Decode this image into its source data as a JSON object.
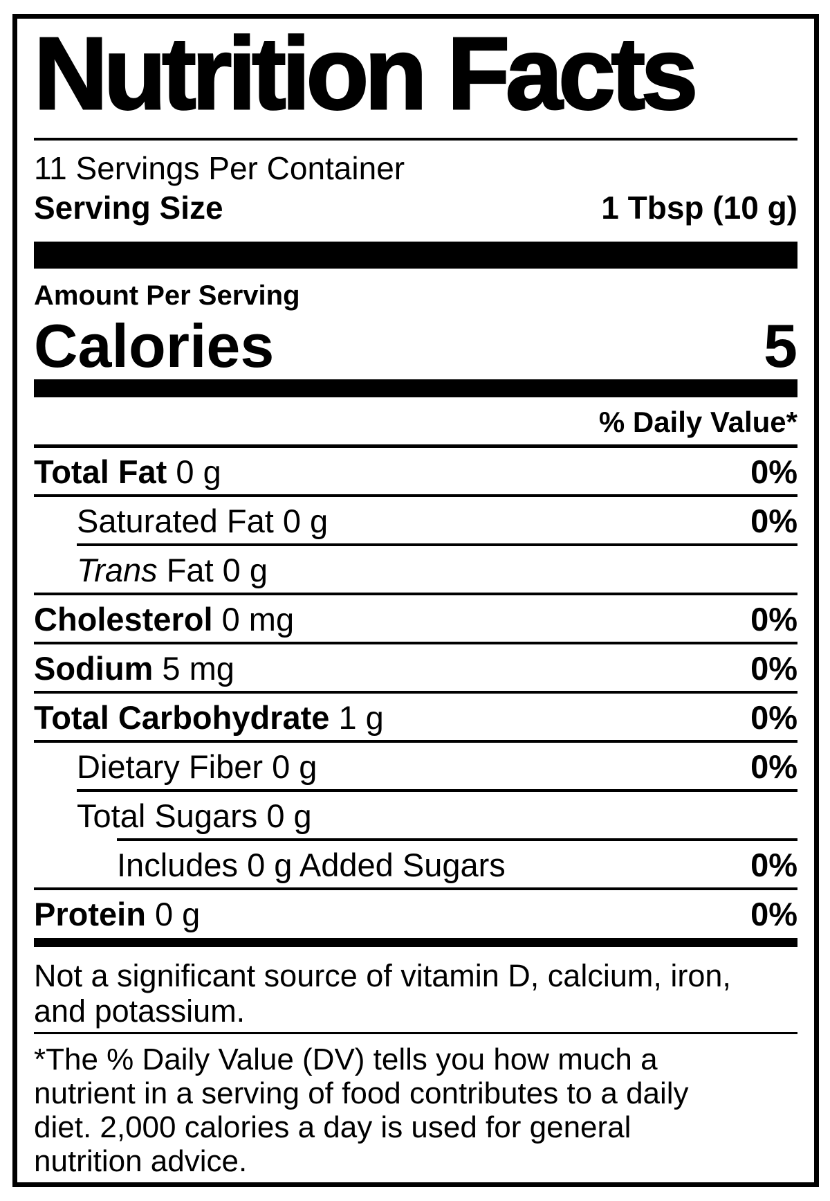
{
  "label": {
    "title": "Nutrition Facts",
    "servings_per_container": "11 Servings Per Container",
    "serving_size_label": "Serving Size",
    "serving_size_value": "1 Tbsp (10 g)",
    "amount_per_serving": "Amount Per Serving",
    "calories_label": "Calories",
    "calories_value": "5",
    "daily_value_header": "% Daily Value*",
    "rows": [
      {
        "name": "Total Fat",
        "amount": "0 g",
        "dv": "0%",
        "indent": 0,
        "bold": true,
        "sep": "full"
      },
      {
        "name": "Saturated Fat",
        "amount": "0 g",
        "dv": "0%",
        "indent": 1,
        "bold": false,
        "sep": "indent1"
      },
      {
        "name": "Fat",
        "name_italic": "Trans",
        "amount": "0 g",
        "dv": "",
        "indent": 1,
        "bold": false,
        "sep": "full"
      },
      {
        "name": "Cholesterol",
        "amount": "0 mg",
        "dv": "0%",
        "indent": 0,
        "bold": true,
        "sep": "full"
      },
      {
        "name": "Sodium",
        "amount": "5 mg",
        "dv": "0%",
        "indent": 0,
        "bold": true,
        "sep": "full"
      },
      {
        "name": "Total Carbohydrate",
        "amount": "1 g",
        "dv": "0%",
        "indent": 0,
        "bold": true,
        "sep": "full"
      },
      {
        "name": "Dietary Fiber",
        "amount": "0 g",
        "dv": "0%",
        "indent": 1,
        "bold": false,
        "sep": "indent1"
      },
      {
        "name": "Total Sugars",
        "amount": "0 g",
        "dv": "",
        "indent": 1,
        "bold": false,
        "sep": "indent2"
      },
      {
        "name": "Includes 0 g Added Sugars",
        "amount": "",
        "dv": "0%",
        "indent": 2,
        "bold": false,
        "sep": "full"
      },
      {
        "name": "Protein",
        "amount": "0 g",
        "dv": "0%",
        "indent": 0,
        "bold": true,
        "sep": "none"
      }
    ],
    "not_significant": [
      "Not a significant source of vitamin D, calcium, iron,",
      "and potassium."
    ],
    "footnote": [
      "*The % Daily Value (DV) tells you how much a",
      "nutrient in a serving of food contributes to a daily",
      "diet. 2,000 calories a day is used for general",
      "nutrition advice."
    ],
    "colors": {
      "ink": "#000000",
      "paper": "#ffffff"
    }
  }
}
